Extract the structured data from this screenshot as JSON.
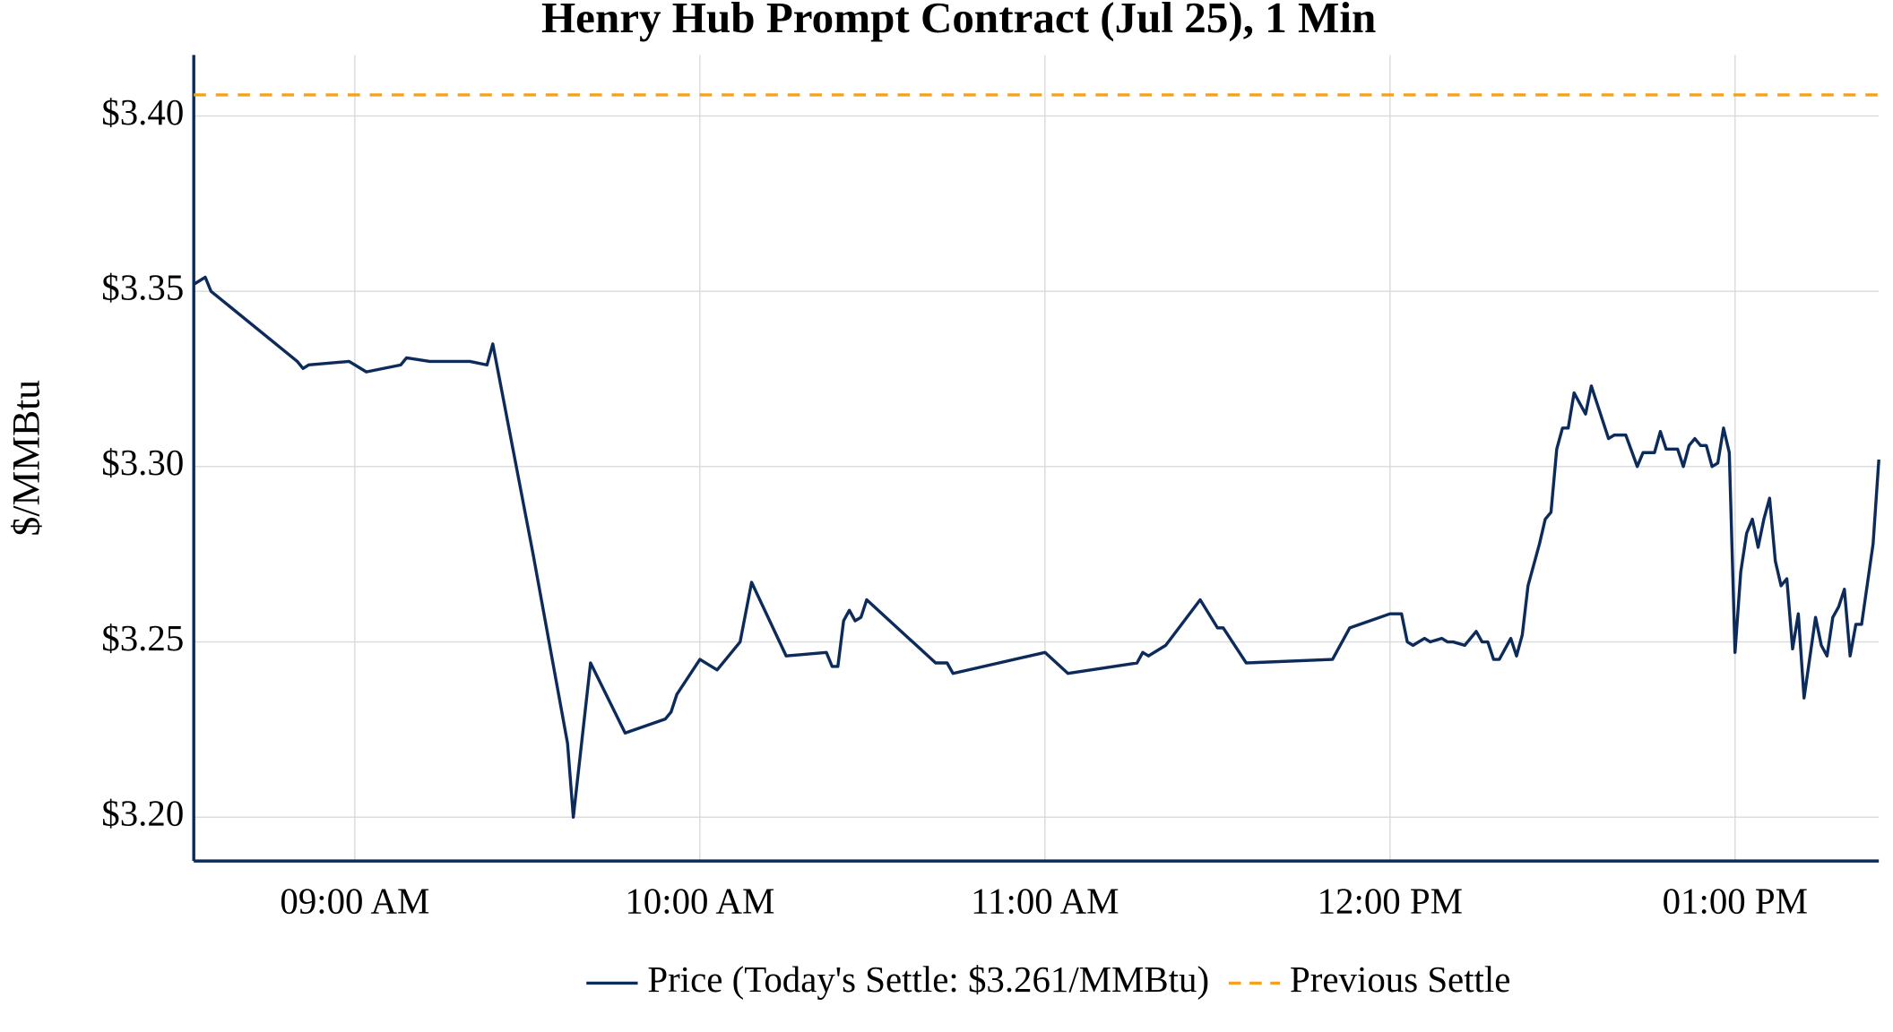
{
  "chart_data": {
    "type": "line",
    "title": "Henry Hub Prompt Contract (Jul 25), 1 Min",
    "ylabel": "$/MMBtu",
    "x": [
      "08:32",
      "08:34",
      "08:35",
      "08:50",
      "08:51",
      "08:52",
      "08:59",
      "09:02",
      "09:08",
      "09:09",
      "09:13",
      "09:20",
      "09:23",
      "09:24",
      "09:31",
      "09:37",
      "09:38",
      "09:41",
      "09:47",
      "09:54",
      "09:55",
      "09:56",
      "10:00",
      "10:03",
      "10:07",
      "10:09",
      "10:15",
      "10:22",
      "10:23",
      "10:24",
      "10:25",
      "10:26",
      "10:27",
      "10:28",
      "10:29",
      "10:41",
      "10:43",
      "10:44",
      "11:00",
      "11:04",
      "11:16",
      "11:17",
      "11:18",
      "11:21",
      "11:27",
      "11:30",
      "11:31",
      "11:35",
      "11:50",
      "11:53",
      "12:00",
      "12:02",
      "12:03",
      "12:04",
      "12:06",
      "12:07",
      "12:09",
      "12:10",
      "12:11",
      "12:13",
      "12:14",
      "12:15",
      "12:16",
      "12:17",
      "12:18",
      "12:19",
      "12:21",
      "12:22",
      "12:23",
      "12:24",
      "12:26",
      "12:27",
      "12:28",
      "12:29",
      "12:30",
      "12:31",
      "12:32",
      "12:34",
      "12:35",
      "12:38",
      "12:39",
      "12:41",
      "12:43",
      "12:44",
      "12:46",
      "12:47",
      "12:48",
      "12:50",
      "12:51",
      "12:52",
      "12:53",
      "12:54",
      "12:55",
      "12:56",
      "12:57",
      "12:58",
      "12:59",
      "13:00",
      "13:01",
      "13:02",
      "13:03",
      "13:04",
      "13:05",
      "13:06",
      "13:07",
      "13:08",
      "13:09",
      "13:10",
      "13:11",
      "13:12",
      "13:14",
      "13:15",
      "13:16",
      "13:17",
      "13:18",
      "13:19",
      "13:20",
      "13:21",
      "13:22",
      "13:24",
      "13:25"
    ],
    "series": [
      {
        "name": "Price (Today's Settle: $3.261/MMBtu)",
        "color": "#0d2b5a",
        "values": [
          3.352,
          3.354,
          3.35,
          3.33,
          3.328,
          3.329,
          3.33,
          3.327,
          3.329,
          3.331,
          3.33,
          3.33,
          3.329,
          3.335,
          3.275,
          3.221,
          3.2,
          3.244,
          3.224,
          3.228,
          3.23,
          3.235,
          3.245,
          3.242,
          3.25,
          3.267,
          3.246,
          3.247,
          3.243,
          3.243,
          3.256,
          3.259,
          3.256,
          3.257,
          3.262,
          3.244,
          3.244,
          3.241,
          3.247,
          3.241,
          3.244,
          3.247,
          3.246,
          3.249,
          3.262,
          3.254,
          3.254,
          3.244,
          3.245,
          3.254,
          3.258,
          3.258,
          3.25,
          3.249,
          3.251,
          3.25,
          3.251,
          3.25,
          3.25,
          3.249,
          3.251,
          3.253,
          3.25,
          3.25,
          3.245,
          3.245,
          3.251,
          3.246,
          3.252,
          3.266,
          3.278,
          3.285,
          3.287,
          3.305,
          3.311,
          3.311,
          3.321,
          3.315,
          3.323,
          3.308,
          3.309,
          3.309,
          3.3,
          3.304,
          3.304,
          3.31,
          3.305,
          3.305,
          3.3,
          3.306,
          3.308,
          3.306,
          3.306,
          3.3,
          3.301,
          3.311,
          3.304,
          3.247,
          3.27,
          3.281,
          3.285,
          3.277,
          3.285,
          3.291,
          3.273,
          3.266,
          3.268,
          3.248,
          3.258,
          3.234,
          3.257,
          3.249,
          3.246,
          3.257,
          3.26,
          3.265,
          3.246,
          3.255,
          3.255,
          3.278,
          3.302
        ]
      }
    ],
    "reference_lines": [
      {
        "name": "Previous Settle",
        "value": 3.406,
        "color": "#f5a11e",
        "dashed": true
      }
    ],
    "xlim": [
      "08:32",
      "13:25"
    ],
    "xticks": [
      {
        "value": "09:00",
        "label": "09:00 AM"
      },
      {
        "value": "10:00",
        "label": "10:00 AM"
      },
      {
        "value": "11:00",
        "label": "11:00 AM"
      },
      {
        "value": "12:00",
        "label": "12:00 PM"
      },
      {
        "value": "13:00",
        "label": "01:00 PM"
      }
    ],
    "ylim": [
      3.1875,
      3.4174
    ],
    "yticks": [
      {
        "value": 3.2,
        "label": "$3.20"
      },
      {
        "value": 3.25,
        "label": "$3.25"
      },
      {
        "value": 3.3,
        "label": "$3.30"
      },
      {
        "value": 3.35,
        "label": "$3.35"
      },
      {
        "value": 3.4,
        "label": "$3.40"
      }
    ],
    "grid": true,
    "legend": "bottom"
  }
}
